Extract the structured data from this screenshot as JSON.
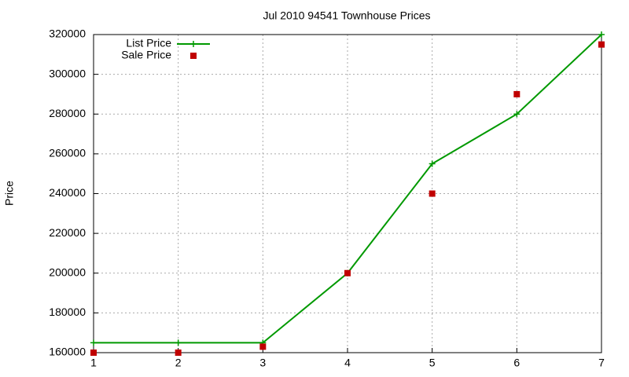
{
  "chart_data": {
    "type": "line",
    "title": "Jul 2010 94541 Townhouse Prices",
    "y_label": "Price",
    "x": [
      1,
      2,
      3,
      4,
      5,
      6,
      7
    ],
    "series": [
      {
        "name": "List Price",
        "color": "#009900",
        "style": "linespoints",
        "values": [
          165000,
          165000,
          165000,
          200000,
          255000,
          280000,
          320000
        ]
      },
      {
        "name": "Sale Price",
        "color": "#c00000",
        "style": "points",
        "values": [
          160000,
          160000,
          163000,
          200000,
          240000,
          290000,
          315000
        ]
      }
    ],
    "xlim": [
      1,
      7
    ],
    "xticks": [
      1,
      2,
      3,
      4,
      5,
      6,
      7
    ],
    "ylim": [
      160000,
      320000
    ],
    "yticks": [
      160000,
      180000,
      200000,
      220000,
      240000,
      260000,
      280000,
      300000,
      320000
    ],
    "grid": true,
    "legend": "top-left"
  }
}
